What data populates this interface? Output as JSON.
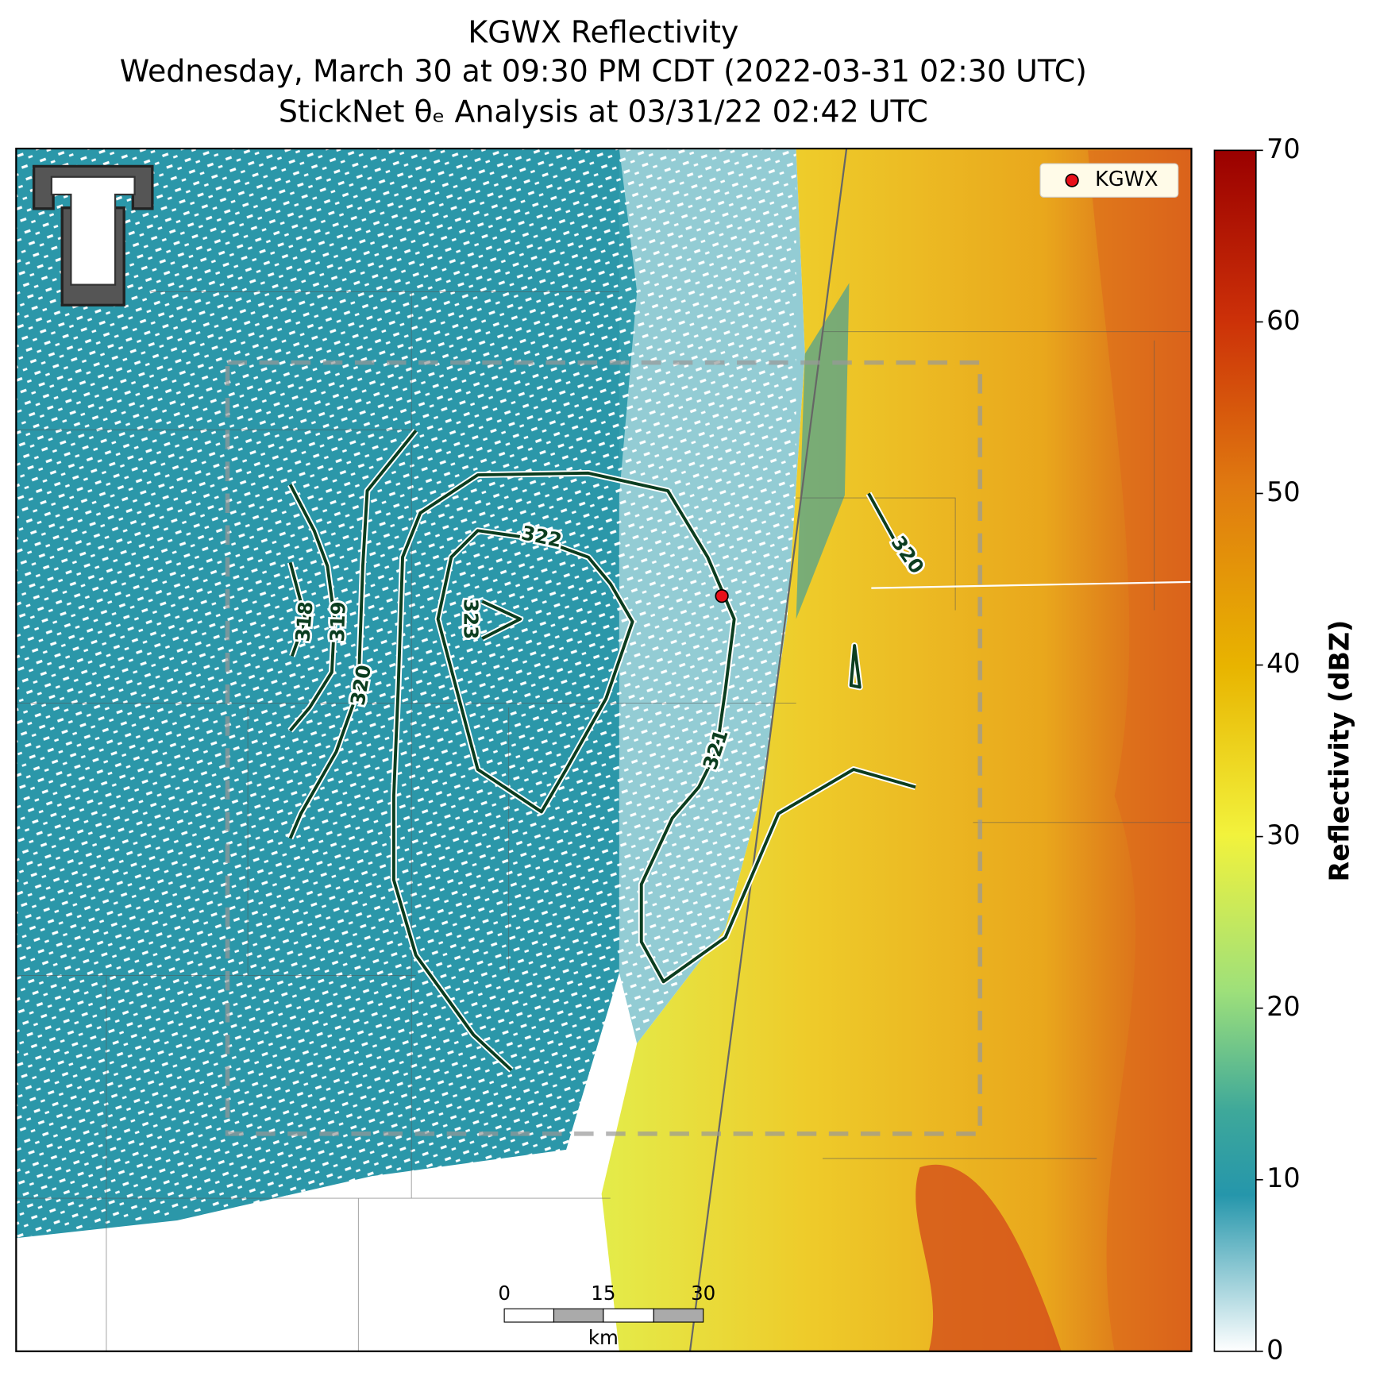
{
  "header": {
    "title": "KGWX Reflectivity",
    "subtitle": "Wednesday, March 30 at 09:30 PM CDT (2022-03-31 02:30 UTC)",
    "analysis": "StickNet θₑ Analysis at 03/31/22 02:42 UTC"
  },
  "legend": {
    "label": "KGWX"
  },
  "colorbar": {
    "label": "Reflectivity (dBZ)",
    "lim": [
      0,
      70
    ],
    "ticks": [
      0,
      10,
      20,
      30,
      40,
      50,
      60,
      70
    ]
  },
  "contour_labels": [
    318,
    319,
    320,
    323,
    322,
    321,
    320
  ],
  "scale_bar": {
    "ticks": [
      0,
      15,
      30
    ],
    "unit": "km"
  }
}
